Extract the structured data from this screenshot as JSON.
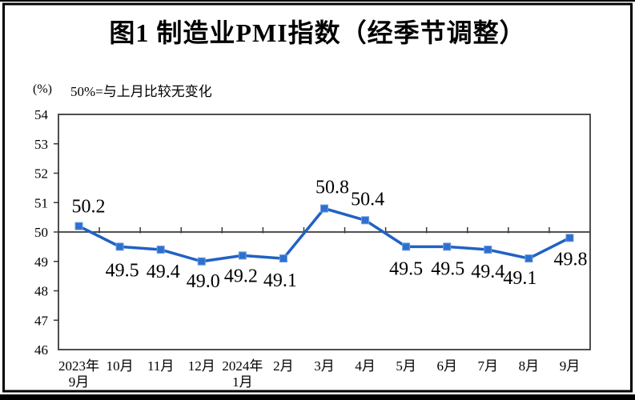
{
  "chart_data": {
    "type": "line",
    "title": "图1 制造业PMI指数（经季节调整）",
    "unit_label": "(%)",
    "subtitle": "50%=与上月比较无变化",
    "categories": [
      "2023年\n9月",
      "10月",
      "11月",
      "12月",
      "2024年\n1月",
      "2月",
      "3月",
      "4月",
      "5月",
      "6月",
      "7月",
      "8月",
      "9月"
    ],
    "series": [
      {
        "name": "制造业PMI",
        "values": [
          50.2,
          49.5,
          49.4,
          49.0,
          49.2,
          49.1,
          50.8,
          50.4,
          49.5,
          49.5,
          49.4,
          49.1,
          49.8
        ]
      }
    ],
    "data_labels": [
      "50.2",
      "49.5",
      "49.4",
      "49.0",
      "49.2",
      "49.1",
      "50.8",
      "50.4",
      "49.5",
      "49.5",
      "49.4",
      "49.1",
      "49.8"
    ],
    "ylim": [
      46,
      54
    ],
    "y_ticks": [
      46,
      47,
      48,
      49,
      50,
      51,
      52,
      53,
      54
    ],
    "reference_line": 50,
    "grid": false,
    "legend_position": "none",
    "colors": {
      "line": "#2062C2",
      "marker_fill": "#2E6FD0",
      "marker_edge": "#6D9BDE",
      "axis": "#3a3a3a",
      "frame": "#000000",
      "text": "#000000"
    }
  }
}
